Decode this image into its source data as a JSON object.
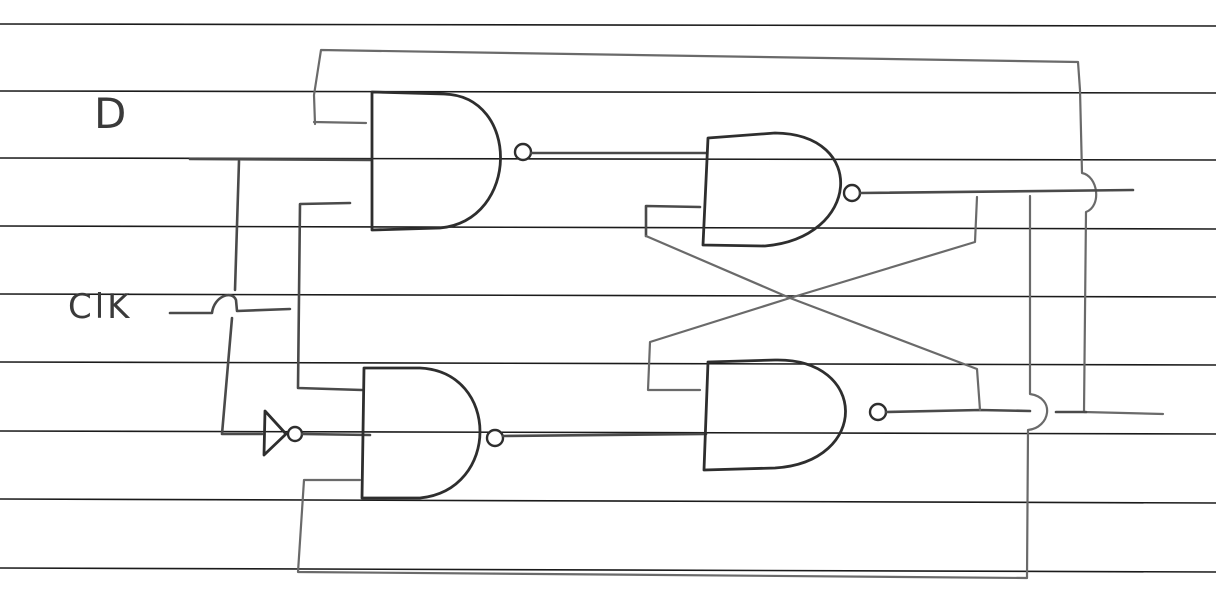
{
  "labels": {
    "d_input": "D",
    "clk_input": "ClK"
  },
  "components": {
    "upper_input_gate": "nand-gate",
    "lower_input_gate": "nand-gate",
    "clock_inverter": "not-gate",
    "upper_latch_gate": "nand-gate",
    "lower_latch_gate": "nand-gate"
  },
  "colors": {
    "paper": "#ffffff",
    "ruling": "#1b1b1b",
    "pencil": "#4a4a4a"
  }
}
